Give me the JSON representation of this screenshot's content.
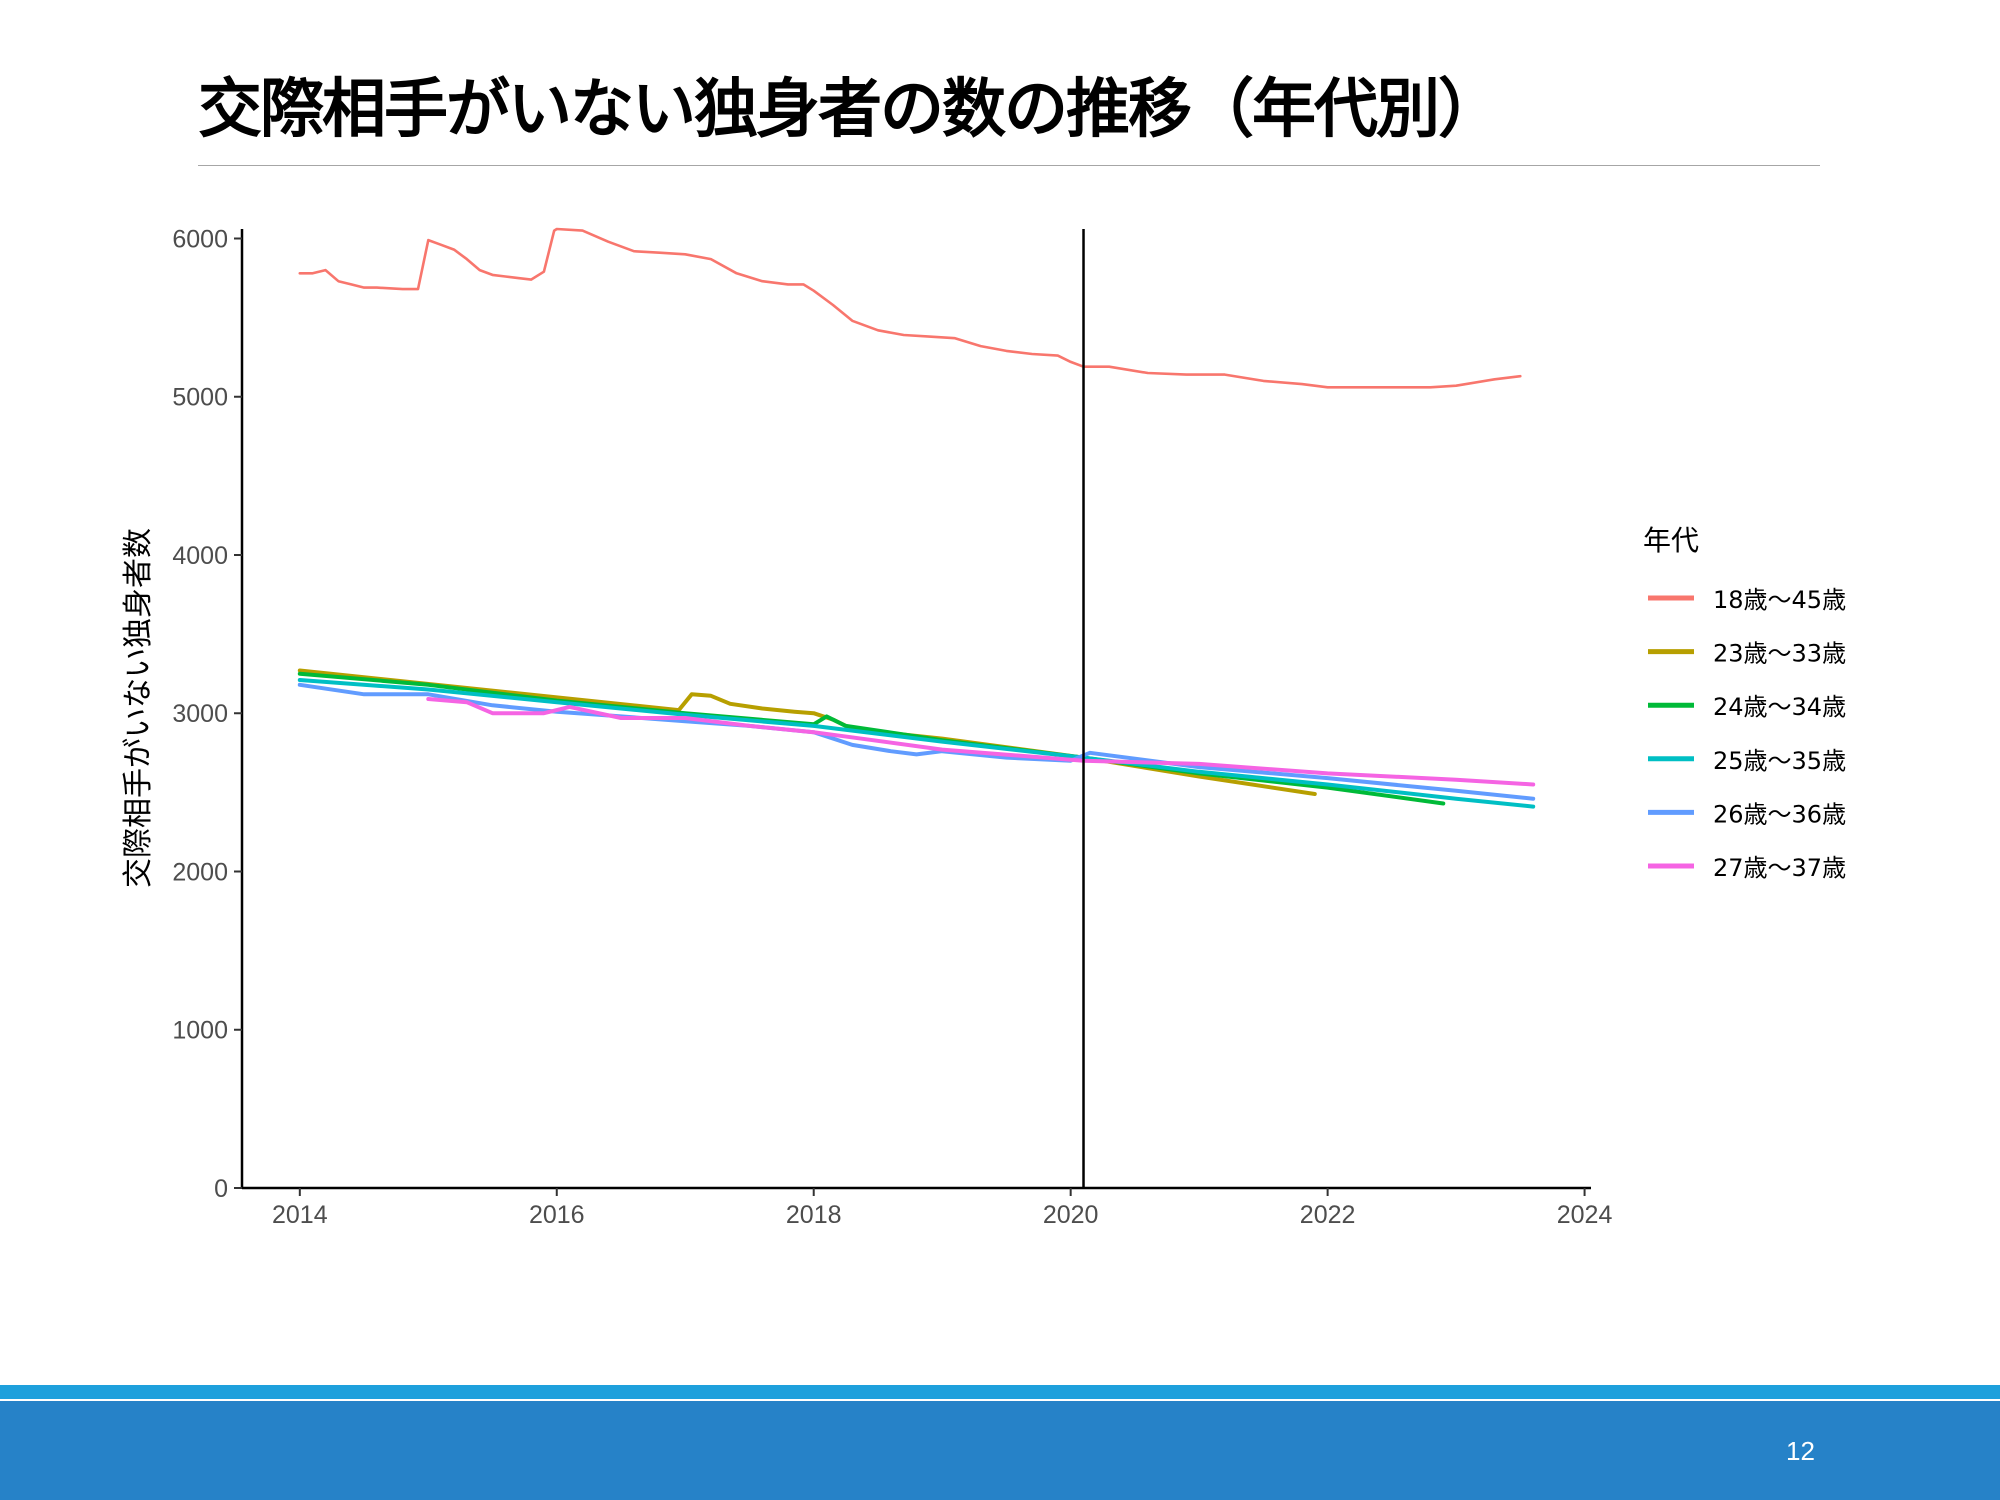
{
  "slide": {
    "title": "交際相手がいない独身者の数の推移（年代別）",
    "page_number": "12"
  },
  "chart_data": {
    "type": "line",
    "title": "",
    "xlabel": "",
    "ylabel": "交際相手がいない独身者数",
    "xlim": [
      2013.55,
      2024.05
    ],
    "ylim": [
      0,
      6060
    ],
    "x_ticks": [
      2014,
      2016,
      2018,
      2020,
      2022,
      2024
    ],
    "y_ticks": [
      0,
      1000,
      2000,
      3000,
      4000,
      5000,
      6000
    ],
    "reference_line_x": 2020.1,
    "grid": false,
    "legend": {
      "title": "年代",
      "position": "right"
    },
    "series": [
      {
        "name": "18歳～45歳",
        "color": "#f8766d",
        "x": [
          2014.0,
          2014.1,
          2014.2,
          2014.3,
          2014.4,
          2014.5,
          2014.6,
          2014.8,
          2014.92,
          2015.0,
          2015.1,
          2015.2,
          2015.3,
          2015.4,
          2015.5,
          2015.6,
          2015.7,
          2015.8,
          2015.9,
          2015.98,
          2016.0,
          2016.2,
          2016.4,
          2016.6,
          2016.8,
          2017.0,
          2017.2,
          2017.4,
          2017.6,
          2017.8,
          2017.92,
          2018.0,
          2018.15,
          2018.3,
          2018.5,
          2018.7,
          2018.9,
          2019.1,
          2019.3,
          2019.5,
          2019.7,
          2019.9,
          2020.0,
          2020.1,
          2020.3,
          2020.6,
          2020.9,
          2021.2,
          2021.5,
          2021.8,
          2022.0,
          2022.2,
          2022.5,
          2022.8,
          2023.0,
          2023.3,
          2023.5
        ],
        "values": [
          5780,
          5780,
          5800,
          5730,
          5710,
          5690,
          5690,
          5680,
          5680,
          5990,
          5960,
          5930,
          5870,
          5800,
          5770,
          5760,
          5750,
          5740,
          5790,
          6050,
          6060,
          6050,
          5980,
          5920,
          5910,
          5900,
          5870,
          5780,
          5730,
          5710,
          5710,
          5670,
          5580,
          5480,
          5420,
          5390,
          5380,
          5370,
          5320,
          5290,
          5270,
          5260,
          5220,
          5190,
          5190,
          5150,
          5140,
          5140,
          5100,
          5080,
          5060,
          5060,
          5060,
          5060,
          5070,
          5110,
          5130
        ]
      },
      {
        "name": "23歳～33歳",
        "color": "#b79f00",
        "x": [
          2014.0,
          2016.0,
          2016.95,
          2017.05,
          2017.2,
          2017.35,
          2017.6,
          2017.85,
          2018.0,
          2018.15,
          2018.3,
          2019.0,
          2020.1,
          2021.0,
          2021.9
        ],
        "values": [
          3270,
          3100,
          3020,
          3120,
          3110,
          3060,
          3030,
          3010,
          3000,
          2960,
          2900,
          2840,
          2720,
          2600,
          2490
        ]
      },
      {
        "name": "24歳～34歳",
        "color": "#00ba38",
        "x": [
          2014.0,
          2015.0,
          2016.0,
          2017.0,
          2018.0,
          2018.1,
          2018.25,
          2019.0,
          2020.1,
          2021.0,
          2022.0,
          2022.9
        ],
        "values": [
          3250,
          3180,
          3080,
          3000,
          2930,
          2980,
          2920,
          2830,
          2720,
          2620,
          2530,
          2430
        ]
      },
      {
        "name": "25歳～35歳",
        "color": "#00bfc4",
        "x": [
          2014.0,
          2015.0,
          2016.0,
          2017.0,
          2018.0,
          2019.0,
          2020.1,
          2021.0,
          2022.0,
          2023.0,
          2023.6
        ],
        "values": [
          3210,
          3150,
          3070,
          2990,
          2920,
          2820,
          2720,
          2630,
          2550,
          2460,
          2410
        ]
      },
      {
        "name": "26歳～36歳",
        "color": "#619cff",
        "x": [
          2014.0,
          2014.5,
          2015.0,
          2015.5,
          2016.0,
          2016.5,
          2017.0,
          2017.5,
          2018.0,
          2018.3,
          2018.6,
          2018.8,
          2019.0,
          2019.5,
          2020.0,
          2020.15,
          2021.0,
          2022.0,
          2023.0,
          2023.6
        ],
        "values": [
          3180,
          3120,
          3120,
          3050,
          3010,
          2980,
          2950,
          2920,
          2880,
          2800,
          2760,
          2740,
          2760,
          2720,
          2700,
          2750,
          2660,
          2590,
          2510,
          2460
        ]
      },
      {
        "name": "27歳～37歳",
        "color": "#f564e3",
        "x": [
          2015.0,
          2015.3,
          2015.5,
          2015.9,
          2016.1,
          2016.5,
          2017.0,
          2017.5,
          2018.0,
          2019.0,
          2020.1,
          2021.0,
          2022.0,
          2023.0,
          2023.6
        ],
        "values": [
          3090,
          3070,
          3000,
          3000,
          3040,
          2970,
          2970,
          2920,
          2880,
          2770,
          2700,
          2680,
          2620,
          2580,
          2550
        ]
      }
    ]
  }
}
